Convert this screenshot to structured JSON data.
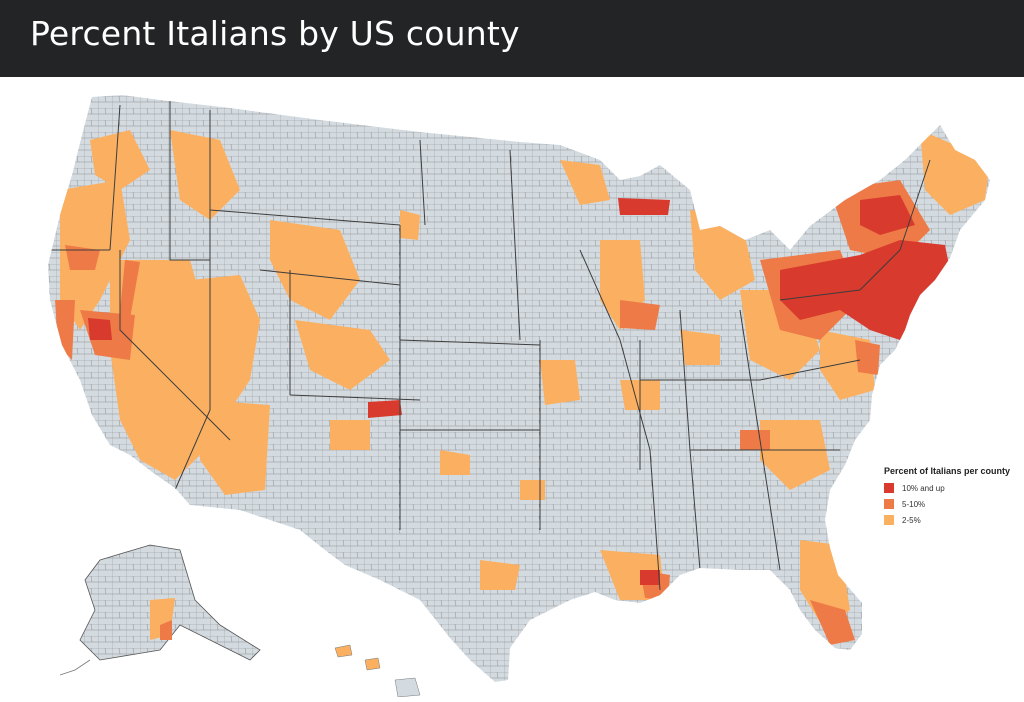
{
  "header": {
    "title": "Percent Italians by US county"
  },
  "map": {
    "legend": {
      "title": "Percent of Italians per county",
      "items": [
        {
          "label": "10% and up",
          "color": "#d83a2d"
        },
        {
          "label": "5-10%",
          "color": "#ee7b47"
        },
        {
          "label": "2-5%",
          "color": "#fbb061"
        }
      ]
    },
    "base_color": "#d4dbe0",
    "border_color": "#6b6b6b"
  }
}
